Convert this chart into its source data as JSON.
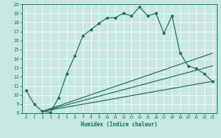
{
  "title": "",
  "xlabel": "Humidex (Indice chaleur)",
  "bg_color": "#c5e8e0",
  "line_color": "#1a6b5a",
  "grid_color": "#ffffff",
  "xlim": [
    -0.5,
    23.5
  ],
  "ylim": [
    8,
    20
  ],
  "xticks": [
    0,
    1,
    2,
    3,
    4,
    5,
    6,
    7,
    8,
    9,
    10,
    11,
    12,
    13,
    14,
    15,
    16,
    17,
    18,
    19,
    20,
    21,
    22,
    23
  ],
  "yticks": [
    8,
    9,
    10,
    11,
    12,
    13,
    14,
    15,
    16,
    17,
    18,
    19,
    20
  ],
  "line1_x": [
    0,
    1,
    2,
    3,
    4,
    5,
    6,
    7,
    8,
    9,
    10,
    11,
    12,
    13,
    14,
    15,
    16,
    17,
    18,
    19,
    20,
    21,
    22,
    23
  ],
  "line1_y": [
    10.5,
    9.0,
    8.2,
    8.1,
    9.7,
    12.3,
    14.3,
    16.5,
    17.2,
    17.9,
    18.5,
    18.5,
    19.0,
    18.7,
    19.7,
    18.7,
    19.0,
    16.8,
    18.7,
    14.6,
    13.2,
    12.9,
    12.3,
    11.5
  ],
  "line2_x": [
    2,
    23
  ],
  "line2_y": [
    8.2,
    11.5
  ],
  "line3_x": [
    2,
    23
  ],
  "line3_y": [
    8.2,
    13.2
  ],
  "line4_x": [
    2,
    23
  ],
  "line4_y": [
    8.2,
    14.6
  ]
}
